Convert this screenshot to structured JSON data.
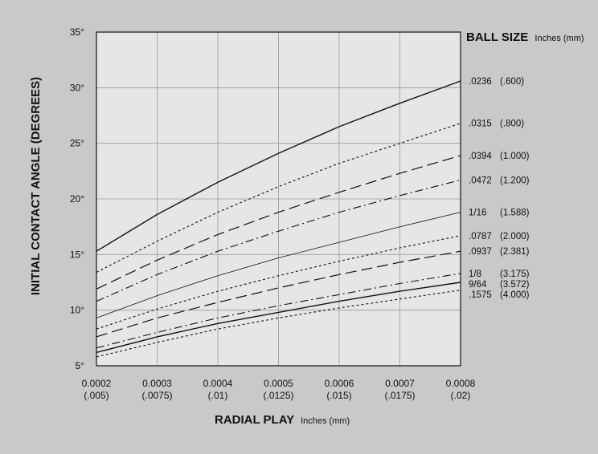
{
  "chart_data": {
    "type": "line",
    "xlabel": "RADIAL PLAY",
    "xlabel_unit": "Inches (mm)",
    "ylabel": "INITIAL CONTACT ANGLE (DEGREES)",
    "legend_title": "BALL SIZE",
    "legend_unit": "Inches (mm)",
    "legend_placement": "right",
    "grid": true,
    "xlim": [
      0.0002,
      0.0008
    ],
    "ylim": [
      5,
      35
    ],
    "x": [
      0.0002,
      0.0003,
      0.0004,
      0.0005,
      0.0006,
      0.0007,
      0.0008
    ],
    "x_tick_labels": [
      "0.0002",
      "0.0003",
      "0.0004",
      "0.0005",
      "0.0006",
      "0.0007",
      "0.0008"
    ],
    "x_tick_labels_mm": [
      "(.005)",
      "(.0075)",
      "(.01)",
      "(.0125)",
      "(.015)",
      "(.0175)",
      "(.02)"
    ],
    "y_ticks": [
      5,
      10,
      15,
      20,
      25,
      30,
      35
    ],
    "y_tick_labels": [
      "5°",
      "10°",
      "15°",
      "20°",
      "25°",
      "30°",
      "35°"
    ],
    "series": [
      {
        "name": ".0236",
        "mm": "(.600)",
        "dash": "solid",
        "values": [
          15.3,
          18.6,
          21.5,
          24.1,
          26.5,
          28.6,
          30.6
        ]
      },
      {
        "name": ".0315",
        "mm": "(.800)",
        "dash": "dot",
        "values": [
          13.4,
          16.2,
          18.8,
          21.1,
          23.2,
          25.0,
          26.8
        ]
      },
      {
        "name": ".0394",
        "mm": "(1.000)",
        "dash": "longdash",
        "values": [
          11.9,
          14.5,
          16.8,
          18.8,
          20.6,
          22.3,
          23.9
        ]
      },
      {
        "name": ".0472",
        "mm": "(1.200)",
        "dash": "dashdot",
        "values": [
          10.8,
          13.2,
          15.3,
          17.1,
          18.8,
          20.3,
          21.7
        ]
      },
      {
        "name": "1/16",
        "mm": "(1.588)",
        "dash": "thin",
        "values": [
          9.3,
          11.3,
          13.1,
          14.7,
          16.1,
          17.5,
          18.8
        ]
      },
      {
        "name": ".0787",
        "mm": "(2.000)",
        "dash": "dot",
        "values": [
          8.3,
          10.1,
          11.7,
          13.1,
          14.4,
          15.6,
          16.7
        ]
      },
      {
        "name": ".0937",
        "mm": "(2.381)",
        "dash": "longdash",
        "values": [
          7.6,
          9.3,
          10.7,
          12.0,
          13.2,
          14.3,
          15.3
        ]
      },
      {
        "name": "1/8",
        "mm": "(3.175)",
        "dash": "dashdot",
        "values": [
          6.6,
          8.0,
          9.3,
          10.4,
          11.4,
          12.4,
          13.3
        ]
      },
      {
        "name": "9/64",
        "mm": "(3.572)",
        "dash": "solid",
        "values": [
          6.2,
          7.6,
          8.8,
          9.8,
          10.8,
          11.7,
          12.5
        ]
      },
      {
        "name": ".1575",
        "mm": "(4.000)",
        "dash": "dot",
        "values": [
          5.8,
          7.1,
          8.3,
          9.3,
          10.2,
          11.0,
          11.8
        ]
      }
    ],
    "colors": {
      "plot_background": "#e6e6e6",
      "page_background": "#c9c9c9",
      "line": "#111111",
      "grid": "#9a9a9a"
    }
  }
}
